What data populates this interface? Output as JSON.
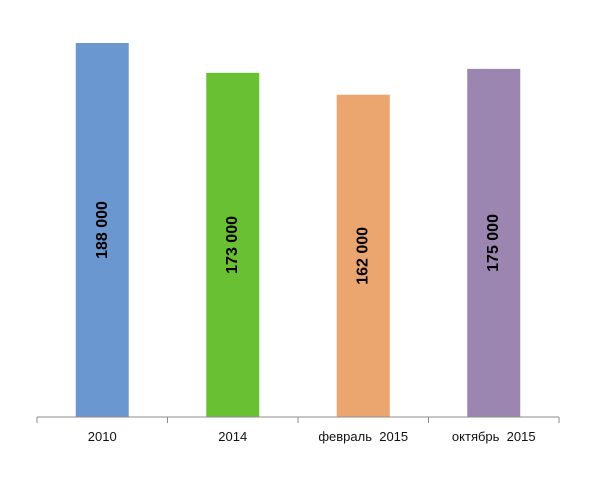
{
  "chart_data": {
    "type": "bar",
    "categories": [
      "2010",
      "2014",
      "февраль  2015",
      "октябрь  2015"
    ],
    "values": [
      188000,
      173000,
      162000,
      175000
    ],
    "data_labels": [
      "188 000",
      "173 000",
      "162 000",
      "175 000"
    ],
    "colors": [
      "#6a97cf",
      "#6ac033",
      "#eba56f",
      "#9b86b1"
    ],
    "ylim": [
      0,
      188000
    ],
    "grid": false,
    "legend": "none",
    "title": "",
    "xlabel": "",
    "ylabel": ""
  }
}
